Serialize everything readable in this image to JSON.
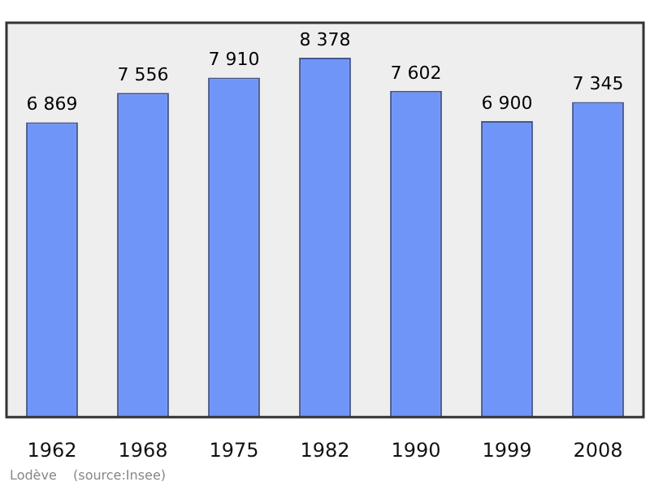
{
  "chart_data": {
    "type": "bar",
    "categories": [
      "1962",
      "1968",
      "1975",
      "1982",
      "1990",
      "1999",
      "2008"
    ],
    "values": [
      6869,
      7556,
      7910,
      8378,
      7602,
      6900,
      7345
    ],
    "value_labels": [
      "6 869",
      "7 556",
      "7 910",
      "8 378",
      "7 602",
      "6 900",
      "7 345"
    ],
    "color": "#7095f8",
    "annotations": [
      "Lodève    (source:Insee)"
    ]
  }
}
